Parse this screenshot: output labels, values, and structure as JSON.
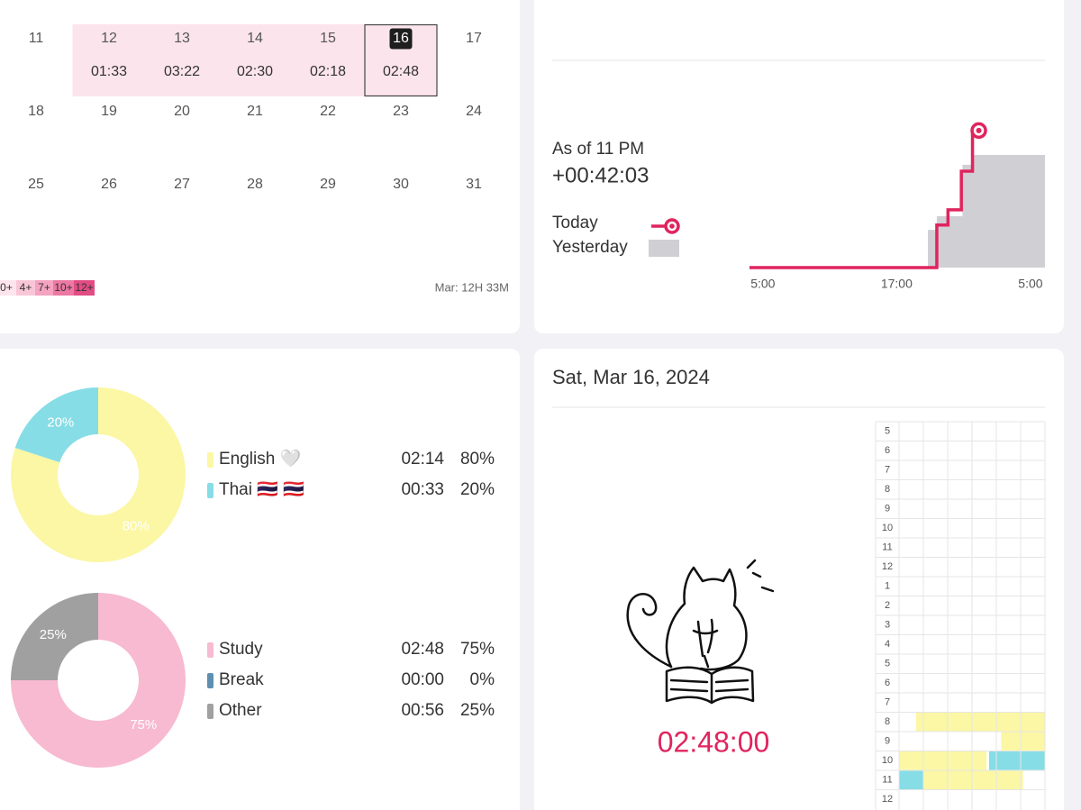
{
  "calendar": {
    "weeks": [
      [
        {
          "day": 11
        },
        {
          "day": 12,
          "time": "01:33"
        },
        {
          "day": 13,
          "time": "03:22"
        },
        {
          "day": 14,
          "time": "02:30"
        },
        {
          "day": 15,
          "time": "02:18"
        },
        {
          "day": 16,
          "time": "02:48"
        },
        {
          "day": 17
        }
      ],
      [
        {
          "day": 18
        },
        {
          "day": 19
        },
        {
          "day": 20
        },
        {
          "day": 21
        },
        {
          "day": 22
        },
        {
          "day": 23
        },
        {
          "day": 24
        }
      ],
      [
        {
          "day": 25
        },
        {
          "day": 26
        },
        {
          "day": 27
        },
        {
          "day": 28
        },
        {
          "day": 29
        },
        {
          "day": 30
        },
        {
          "day": 31
        }
      ]
    ],
    "selected_day": 16,
    "active_color": "#fce4ec",
    "legend": [
      {
        "label": "0+",
        "color": "#fde4ed"
      },
      {
        "label": "4+",
        "color": "#f9c6d8"
      },
      {
        "label": "7+",
        "color": "#f4a3c0"
      },
      {
        "label": "10+",
        "color": "#ec79a2"
      },
      {
        "label": "12+",
        "color": "#e14d83"
      }
    ],
    "summary": "Mar: 12H 33M"
  },
  "chart_data": [
    {
      "type": "line",
      "subtitle": "As of 11 PM",
      "annotation": "+00:42:03",
      "series": [
        {
          "name": "Today",
          "color": "#e0245e",
          "x": [
            3.8,
            20.6,
            20.6,
            21.6,
            21.6,
            22.8,
            22.8,
            23.8,
            23.8
          ],
          "values": [
            0,
            0,
            0.87,
            0.87,
            1.18,
            1.18,
            1.97,
            1.97,
            2.8
          ]
        },
        {
          "name": "Yesterday",
          "color": "#cfcfd4",
          "fill": true,
          "x": [
            19.8,
            19.8,
            20.6,
            20.6,
            22.9,
            22.9,
            23.8,
            23.8,
            30.3,
            30.3
          ],
          "values": [
            0,
            0.77,
            0.77,
            1.05,
            1.05,
            2.1,
            2.1,
            2.3,
            2.3,
            0
          ]
        }
      ],
      "xlim": [
        3.8,
        30.3
      ],
      "xticks": [
        {
          "value": 5,
          "label": "5:00"
        },
        {
          "value": 17,
          "label": "17:00"
        },
        {
          "value": 29,
          "label": "5:00"
        }
      ],
      "ylim": [
        0,
        3
      ]
    },
    {
      "type": "pie",
      "donut": true,
      "categories": [
        "English 🤍",
        "Thai 🇹🇭 🇹🇭"
      ],
      "values": [
        80,
        20
      ],
      "value_labels": [
        "80%",
        "20%"
      ],
      "durations": [
        "02:14",
        "00:33"
      ],
      "colors": [
        "#fbf7a5",
        "#86dde6"
      ]
    },
    {
      "type": "pie",
      "donut": true,
      "categories": [
        "Study",
        "Break",
        "Other"
      ],
      "values": [
        75,
        0,
        25
      ],
      "value_labels": [
        "75%",
        "0%",
        "25%"
      ],
      "durations": [
        "02:48",
        "00:00",
        "00:56"
      ],
      "colors": [
        "#f7bad0",
        "#5f8fb0",
        "#a0a0a0"
      ]
    }
  ],
  "day": {
    "date": "Sat, Mar 16, 2024",
    "total": "02:48:00",
    "timeline": {
      "hours": [
        "5",
        "6",
        "7",
        "8",
        "9",
        "10",
        "11",
        "12",
        "1",
        "2",
        "3",
        "4",
        "5",
        "6",
        "7",
        "8",
        "9",
        "10",
        "11",
        "12"
      ],
      "columns": 6,
      "blocks": [
        {
          "row": 15,
          "start_min": 7,
          "end_min": 60,
          "color": "#fbf7a5"
        },
        {
          "row": 16,
          "start_min": 42,
          "end_min": 60,
          "color": "#fbf7a5"
        },
        {
          "row": 17,
          "start_min": 0,
          "end_min": 36,
          "color": "#fbf7a5"
        },
        {
          "row": 17,
          "start_min": 37,
          "end_min": 60,
          "color": "#86dde6"
        },
        {
          "row": 18,
          "start_min": 0,
          "end_min": 10,
          "color": "#86dde6"
        },
        {
          "row": 18,
          "start_min": 10,
          "end_min": 51,
          "color": "#fbf7a5"
        }
      ]
    }
  }
}
